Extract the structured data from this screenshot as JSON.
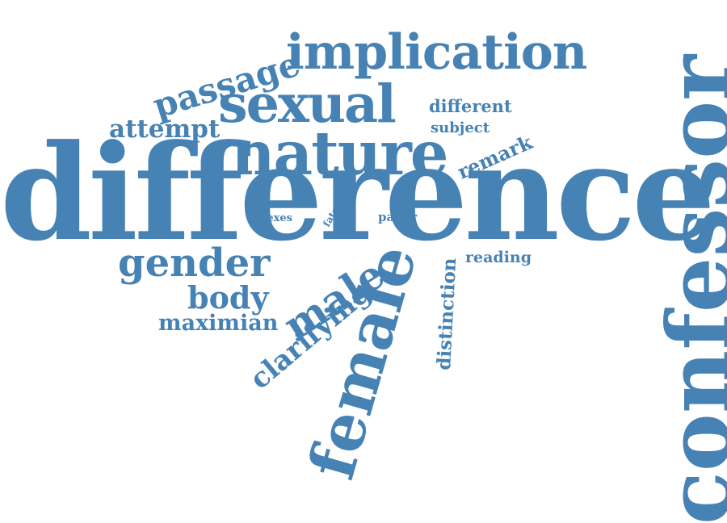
{
  "cloud": {
    "color": "#4682b4",
    "words": [
      {
        "id": "difference",
        "text": "difference"
      },
      {
        "id": "confessor",
        "text": "confessor"
      },
      {
        "id": "female",
        "text": "female"
      },
      {
        "id": "nature",
        "text": "nature"
      },
      {
        "id": "implication",
        "text": "implication"
      },
      {
        "id": "sexual",
        "text": "sexual"
      },
      {
        "id": "passage",
        "text": "passage"
      },
      {
        "id": "gender",
        "text": "gender"
      },
      {
        "id": "male",
        "text": "male"
      },
      {
        "id": "clarifying",
        "text": "clarifying"
      },
      {
        "id": "body",
        "text": "body"
      },
      {
        "id": "attempt",
        "text": "attempt"
      },
      {
        "id": "maximian",
        "text": "maximian"
      },
      {
        "id": "distinction",
        "text": "distinction"
      },
      {
        "id": "remark",
        "text": "remark"
      },
      {
        "id": "different",
        "text": "different"
      },
      {
        "id": "subject",
        "text": "subject"
      },
      {
        "id": "reading",
        "text": "reading"
      },
      {
        "id": "paper",
        "text": "paper"
      },
      {
        "id": "sexes",
        "text": "sexes"
      },
      {
        "id": "fate",
        "text": "fate"
      }
    ]
  }
}
